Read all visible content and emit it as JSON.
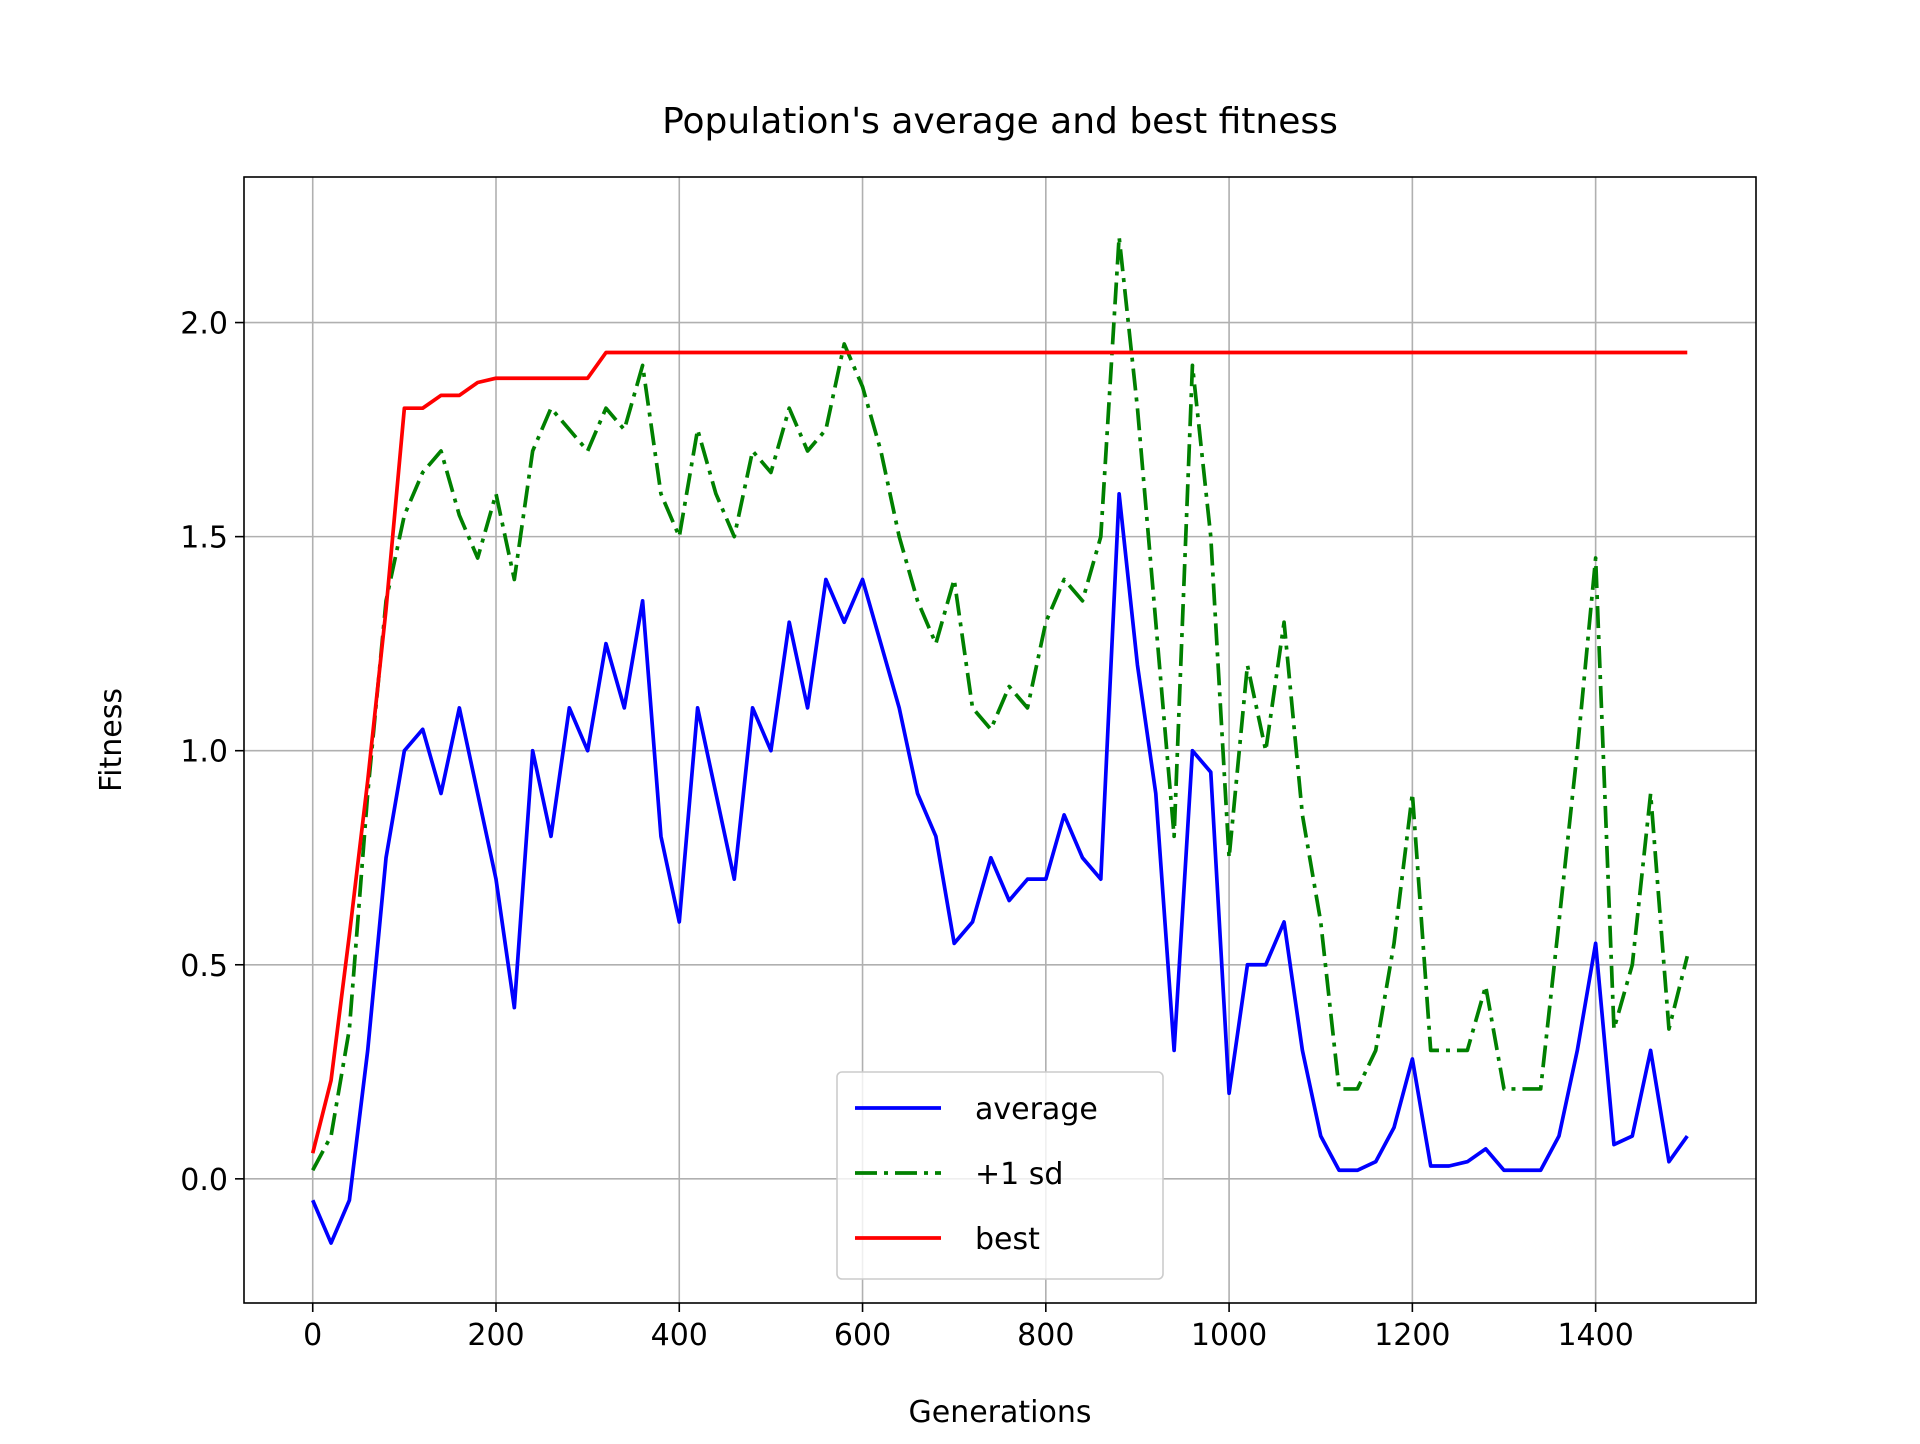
{
  "chart_data": {
    "type": "line",
    "title": "Population's average and best fitness",
    "xlabel": "Generations",
    "ylabel": "Fitness",
    "x": [
      0,
      20,
      40,
      60,
      80,
      100,
      120,
      140,
      160,
      180,
      200,
      220,
      240,
      260,
      280,
      300,
      320,
      340,
      360,
      380,
      400,
      420,
      440,
      460,
      480,
      500,
      520,
      540,
      560,
      580,
      600,
      620,
      640,
      660,
      680,
      700,
      720,
      740,
      760,
      780,
      800,
      820,
      840,
      860,
      880,
      900,
      920,
      940,
      960,
      980,
      1000,
      1020,
      1040,
      1060,
      1080,
      1100,
      1120,
      1140,
      1160,
      1180,
      1200,
      1220,
      1240,
      1260,
      1280,
      1300,
      1320,
      1340,
      1360,
      1380,
      1400,
      1420,
      1440,
      1460,
      1480,
      1500
    ],
    "series": [
      {
        "name": "average",
        "color": "#0000ff",
        "style": "solid",
        "values": [
          -0.05,
          -0.15,
          -0.05,
          0.3,
          0.75,
          1.0,
          1.05,
          0.9,
          1.1,
          0.9,
          0.7,
          0.4,
          1.0,
          0.8,
          1.1,
          1.0,
          1.25,
          1.1,
          1.35,
          0.8,
          0.6,
          1.1,
          0.9,
          0.7,
          1.1,
          1.0,
          1.3,
          1.1,
          1.4,
          1.3,
          1.4,
          1.25,
          1.1,
          0.9,
          0.8,
          0.55,
          0.6,
          0.75,
          0.65,
          0.7,
          0.7,
          0.85,
          0.75,
          0.7,
          1.6,
          1.2,
          0.9,
          0.3,
          1.0,
          0.95,
          0.2,
          0.5,
          0.5,
          0.6,
          0.3,
          0.1,
          0.02,
          0.02,
          0.04,
          0.12,
          0.28,
          0.03,
          0.03,
          0.04,
          0.07,
          0.02,
          0.02,
          0.02,
          0.1,
          0.3,
          0.55,
          0.08,
          0.1,
          0.3,
          0.04,
          0.1
        ]
      },
      {
        "name": "+1 sd",
        "color": "#008000",
        "style": "dashdot",
        "values": [
          0.02,
          0.1,
          0.35,
          0.9,
          1.35,
          1.55,
          1.65,
          1.7,
          1.55,
          1.45,
          1.6,
          1.4,
          1.7,
          1.8,
          1.75,
          1.7,
          1.8,
          1.75,
          1.9,
          1.6,
          1.5,
          1.75,
          1.6,
          1.5,
          1.7,
          1.65,
          1.8,
          1.7,
          1.75,
          1.95,
          1.85,
          1.7,
          1.5,
          1.35,
          1.25,
          1.4,
          1.1,
          1.05,
          1.15,
          1.1,
          1.3,
          1.4,
          1.35,
          1.5,
          2.2,
          1.8,
          1.3,
          0.8,
          1.9,
          1.5,
          0.75,
          1.2,
          1.0,
          1.3,
          0.85,
          0.6,
          0.21,
          0.21,
          0.3,
          0.55,
          0.9,
          0.3,
          0.3,
          0.3,
          0.45,
          0.21,
          0.21,
          0.21,
          0.6,
          1.0,
          1.45,
          0.35,
          0.5,
          0.9,
          0.35,
          0.52
        ]
      },
      {
        "name": "best",
        "color": "#ff0000",
        "style": "solid",
        "values": [
          0.06,
          0.23,
          0.57,
          0.93,
          1.33,
          1.8,
          1.8,
          1.83,
          1.83,
          1.86,
          1.87,
          1.87,
          1.87,
          1.87,
          1.87,
          1.87,
          1.93,
          1.93,
          1.93,
          1.93,
          1.93,
          1.93,
          1.93,
          1.93,
          1.93,
          1.93,
          1.93,
          1.93,
          1.93,
          1.93,
          1.93,
          1.93,
          1.93,
          1.93,
          1.93,
          1.93,
          1.93,
          1.93,
          1.93,
          1.93,
          1.93,
          1.93,
          1.93,
          1.93,
          1.93,
          1.93,
          1.93,
          1.93,
          1.93,
          1.93,
          1.93,
          1.93,
          1.93,
          1.93,
          1.93,
          1.93,
          1.93,
          1.93,
          1.93,
          1.93,
          1.93,
          1.93,
          1.93,
          1.93,
          1.93,
          1.93,
          1.93,
          1.93,
          1.93,
          1.93,
          1.93,
          1.93,
          1.93,
          1.93,
          1.93,
          1.93
        ]
      }
    ],
    "xlim": [
      -75,
      1575
    ],
    "ylim": [
      -0.29,
      2.34
    ],
    "xticks": [
      0,
      200,
      400,
      600,
      800,
      1000,
      1200,
      1400
    ],
    "yticks": [
      {
        "value": 0,
        "label": "0.0"
      },
      {
        "value": 0.5,
        "label": "0.5"
      },
      {
        "value": 1,
        "label": "1.0"
      },
      {
        "value": 1.5,
        "label": "1.5"
      },
      {
        "value": 2,
        "label": "2.0"
      }
    ],
    "grid": true,
    "legend": "lower center"
  }
}
